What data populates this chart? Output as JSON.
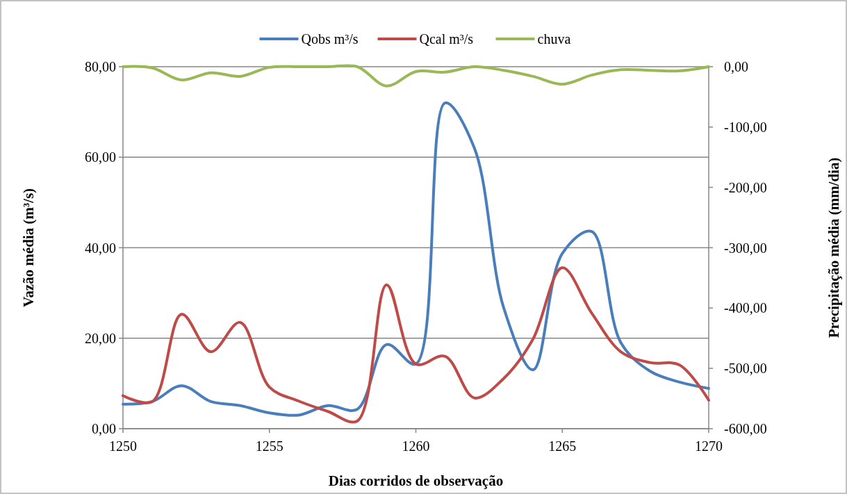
{
  "chart_data": {
    "type": "line",
    "xlabel": "Dias corridos de observação",
    "ylabel": "Vazão média (m³/s)",
    "y2label": "Precipitação média (mm/dia)",
    "x": [
      1250,
      1251,
      1252,
      1253,
      1254,
      1255,
      1256,
      1257,
      1258,
      1259,
      1260,
      1261,
      1262,
      1263,
      1264,
      1265,
      1266,
      1267,
      1268,
      1269,
      1270
    ],
    "series": [
      {
        "name": "Qobs m³/s",
        "color": "#4a7ebb",
        "values": [
          5.4,
          6.0,
          9.5,
          6.0,
          5.1,
          3.5,
          3.0,
          5.1,
          4.3,
          18.6,
          14.3,
          72,
          62,
          26.7,
          13,
          38.7,
          43.6,
          19,
          12.7,
          10.3,
          8.9
        ]
      },
      {
        "name": "Qcal m³/s",
        "color": "#be4b48",
        "values": [
          7.3,
          6.0,
          25.3,
          17,
          23.5,
          9.2,
          6.1,
          3.8,
          1.7,
          31.8,
          14.3,
          16,
          6.8,
          11.1,
          19.8,
          35.6,
          25.6,
          17,
          14.6,
          14.1,
          6.3
        ]
      },
      {
        "name": "chuva",
        "color": "#98b954",
        "axis": "y2",
        "values": [
          0,
          -2,
          -22,
          -10,
          -16,
          -1,
          0,
          0,
          0,
          -32,
          -8,
          -9,
          0,
          -6,
          -16,
          -29,
          -14,
          -5,
          -6,
          -7,
          0
        ]
      }
    ],
    "xlim": [
      1250,
      1270
    ],
    "xticks": [
      1250,
      1255,
      1260,
      1265,
      1270
    ],
    "ylim": [
      0,
      80
    ],
    "yticks": [
      {
        "value": 0,
        "label": "0,00"
      },
      {
        "value": 20,
        "label": "20,00"
      },
      {
        "value": 40,
        "label": "40,00"
      },
      {
        "value": 60,
        "label": "60,00"
      },
      {
        "value": 80,
        "label": "80,00"
      }
    ],
    "y2lim": [
      -600,
      0
    ],
    "y2ticks": [
      {
        "value": -600,
        "label": "-600,00"
      },
      {
        "value": -500,
        "label": "-500,00"
      },
      {
        "value": -400,
        "label": "-400,00"
      },
      {
        "value": -300,
        "label": "-300,00"
      },
      {
        "value": -200,
        "label": "-200,00"
      },
      {
        "value": -100,
        "label": "-100,00"
      },
      {
        "value": 0,
        "label": "0,00"
      }
    ],
    "grid": "y",
    "legend": "top",
    "marker": "none",
    "line_style": "solid"
  }
}
